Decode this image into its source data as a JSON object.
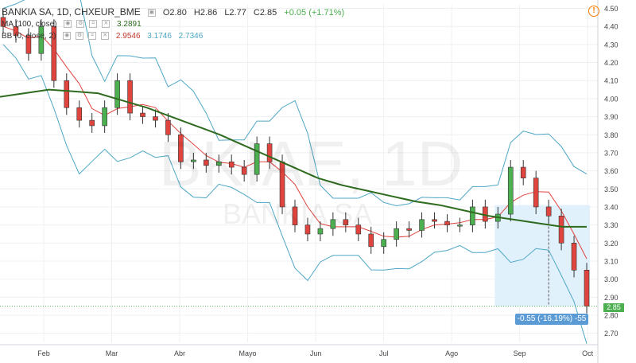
{
  "header": {
    "symbol": "BANKIA SA, 1D, CHXEUR_BME",
    "open": "O2.80",
    "high": "H2.86",
    "low": "L2.77",
    "close": "C2.85",
    "change": "+0.05 (+1.71%)",
    "ma_label": "MA (100, close)",
    "ma_value": "3.2891",
    "bb_label": "BB (0, close, 2)",
    "bb_v1": "2.9546",
    "bb_v2": "3.1746",
    "bb_v3": "2.7346"
  },
  "watermark": {
    "ticker": "BKIAE, 1D",
    "name": "BANKIA SA"
  },
  "measure_label": "-0.55 (-16.19%) -55",
  "last_price_label": "2.85",
  "colors": {
    "up": "#4caf50",
    "down": "#e0443e",
    "ma": "#2e6b1e",
    "band": "#4fa7c5",
    "mid": "#e0443e",
    "measure": "#dceefc"
  },
  "chart_data": {
    "type": "candlestick",
    "ylim": [
      2.65,
      4.52
    ],
    "y_ticks": [
      "4.50",
      "4.40",
      "4.30",
      "4.20",
      "4.10",
      "4.00",
      "3.90",
      "3.80",
      "3.70",
      "3.60",
      "3.50",
      "3.40",
      "3.30",
      "3.20",
      "3.10",
      "3.00",
      "2.90",
      "2.80",
      "2.70"
    ],
    "x_ticks": [
      "Feb",
      "Mar",
      "Abr",
      "Mayo",
      "Jun",
      "Jul",
      "Ago",
      "Sep",
      "Oct"
    ],
    "series": [
      {
        "name": "MA (100, close)",
        "values": [
          4.01,
          4.03,
          4.05,
          4.04,
          4.03,
          3.99,
          3.95,
          3.9,
          3.85,
          3.8,
          3.74,
          3.68,
          3.62,
          3.56,
          3.52,
          3.49,
          3.46,
          3.43,
          3.41,
          3.38,
          3.35,
          3.33,
          3.31,
          3.29,
          3.29
        ]
      },
      {
        "name": "Close",
        "values": [
          4.4,
          4.35,
          4.25,
          4.4,
          4.1,
          3.95,
          3.88,
          3.85,
          3.95,
          4.1,
          3.92,
          3.9,
          3.88,
          3.8,
          3.65,
          3.66,
          3.63,
          3.65,
          3.62,
          3.58,
          3.75,
          3.65,
          3.4,
          3.3,
          3.25,
          3.28,
          3.33,
          3.3,
          3.25,
          3.18,
          3.22,
          3.28,
          3.27,
          3.33,
          3.32,
          3.3,
          3.3,
          3.4,
          3.32,
          3.36,
          3.62,
          3.56,
          3.4,
          3.35,
          3.2,
          3.05,
          2.85
        ]
      }
    ]
  }
}
